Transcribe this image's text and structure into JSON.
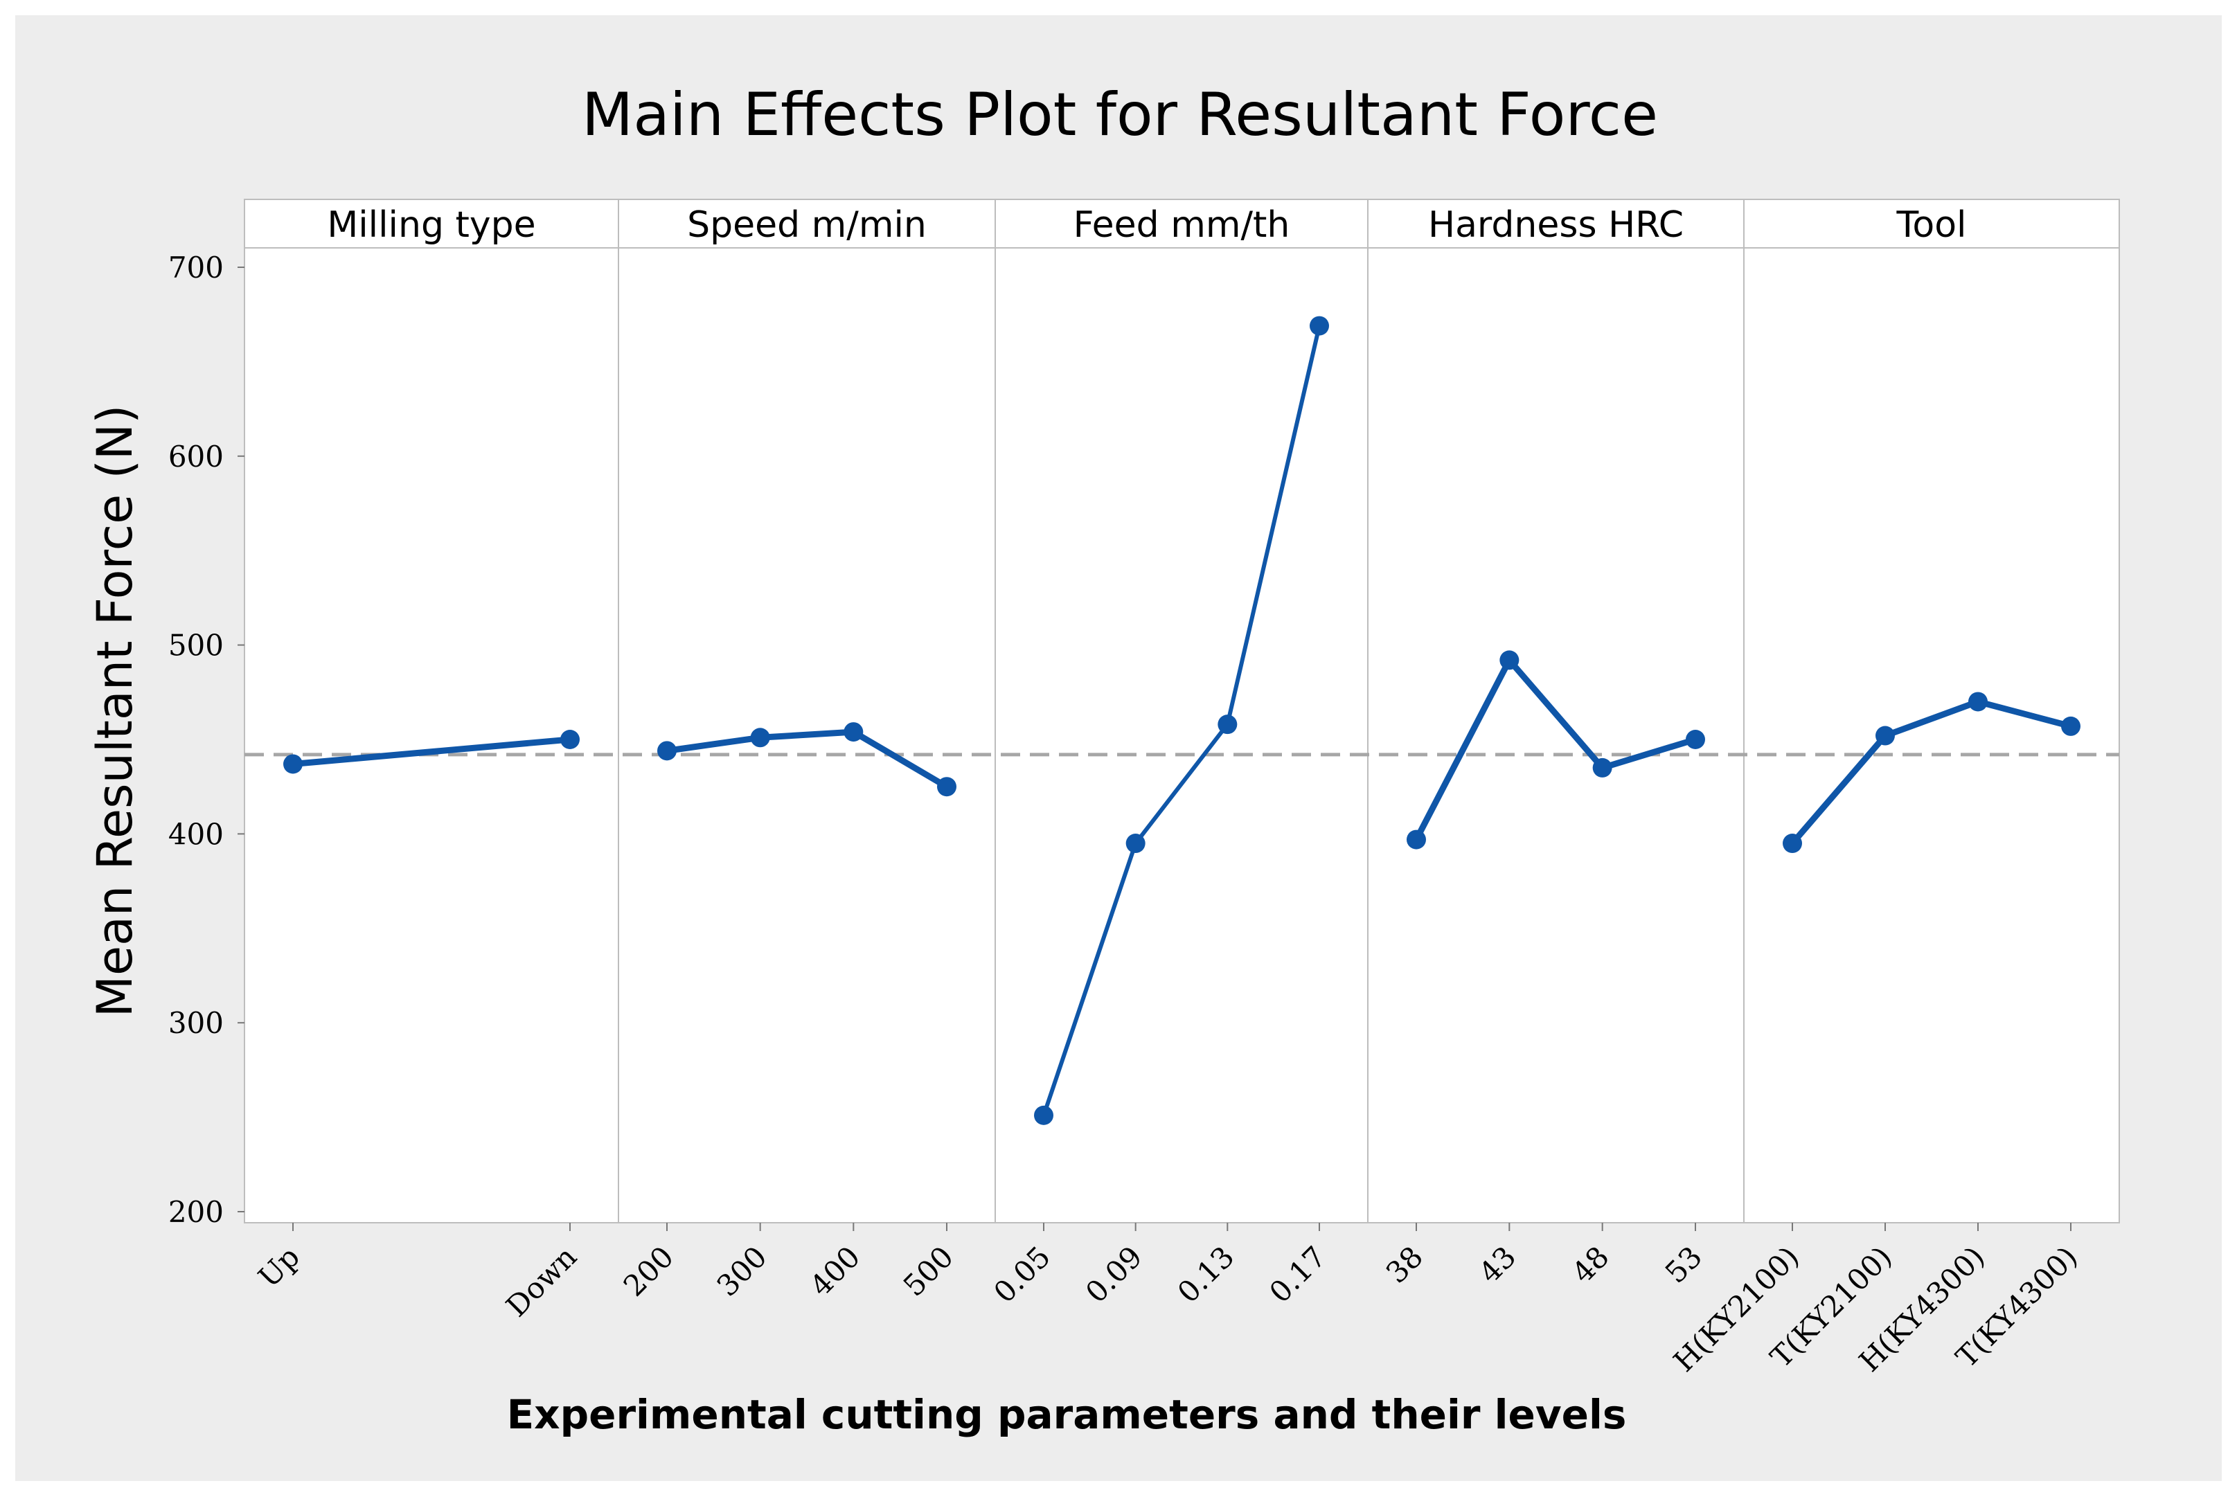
{
  "chart_data": {
    "type": "line",
    "title": "Main Effects Plot for Resultant Force",
    "xlabel": "Experimental cutting parameters and their levels",
    "ylabel": "Mean Resultant Force (N)",
    "ylim": [
      200,
      700
    ],
    "yticks": [
      200,
      300,
      400,
      500,
      600,
      700
    ],
    "reference_mean": 442,
    "grid": false,
    "colors": {
      "series": "#0F56A8",
      "reference": "#A6A6A6",
      "frame": "#BDBDBD",
      "outer_bg": "#EDEDED",
      "panel_bg": "#FFFFFF"
    },
    "panels": [
      {
        "name": "Milling type",
        "categories": [
          "Up",
          "Down"
        ],
        "values": [
          437,
          450
        ]
      },
      {
        "name": "Speed m/min",
        "categories": [
          "200",
          "300",
          "400",
          "500"
        ],
        "values": [
          444,
          451,
          454,
          425
        ]
      },
      {
        "name": "Feed  mm/th",
        "categories": [
          "0.05",
          "0.09",
          "0.13",
          "0.17"
        ],
        "values": [
          251,
          395,
          458,
          669
        ]
      },
      {
        "name": "Hardness HRC",
        "categories": [
          "38",
          "43",
          "48",
          "53"
        ],
        "values": [
          397,
          492,
          435,
          450
        ]
      },
      {
        "name": "Tool",
        "categories": [
          "H(KY2100)",
          "T(KY2100)",
          "H(KY4300)",
          "T(KY4300)"
        ],
        "values": [
          395,
          452,
          470,
          457
        ]
      }
    ]
  }
}
